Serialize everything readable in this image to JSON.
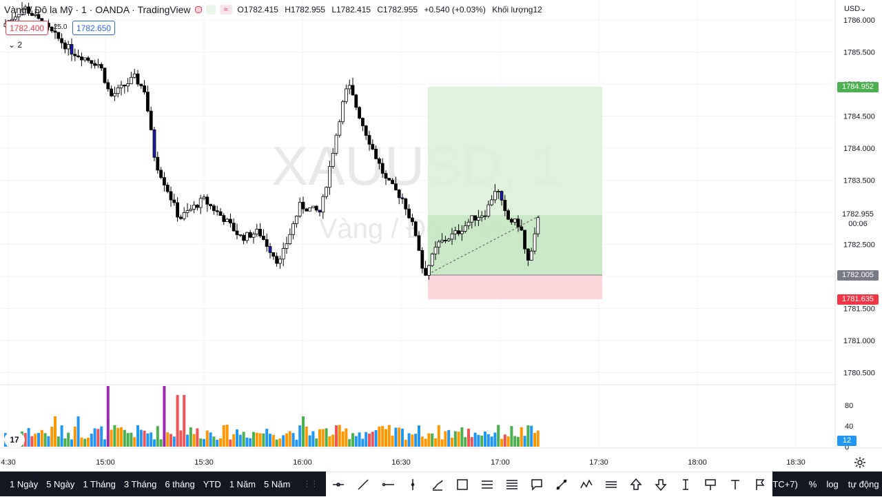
{
  "chart": {
    "title": "Vàng / Đô la Mỹ · 1 · OANDA · TradingView",
    "ohlc": {
      "open": "O1782.415",
      "high": "H1782.955",
      "low": "L1782.415",
      "close": "C1782.955",
      "change": "+0.540 (+0.03%)",
      "volume": "Khối lượng12"
    },
    "sell_price": "1782.400",
    "buy_price": "1782.650",
    "spread": "25.0",
    "collapse_count": "2",
    "watermark_symbol": "XAUUSD, 1",
    "watermark_name": "Vàng / Đô la Mỹ",
    "currency": "USD"
  },
  "price_axis": {
    "ticks": [
      "1786.000",
      "1785.500",
      "1785.000",
      "1784.500",
      "1784.000",
      "1783.500",
      "1783.000",
      "1782.500",
      "1782.000",
      "1781.500",
      "1781.000",
      "1780.500"
    ],
    "labels": {
      "target": "1784.952",
      "last": "1782.955",
      "countdown": "00:06",
      "entry": "1782.005",
      "stop": "1781.635"
    }
  },
  "volume_axis": {
    "ticks": [
      "80",
      "40",
      "0"
    ],
    "current": "12"
  },
  "time_axis": {
    "ticks": [
      "4:30",
      "15:00",
      "15:30",
      "16:00",
      "16:30",
      "17:00",
      "17:30",
      "18:00",
      "18:30"
    ]
  },
  "bottom_bar": {
    "timeframes": [
      "1 Ngày",
      "5 Ngày",
      "1 Tháng",
      "3 Tháng",
      "6 tháng",
      "YTD",
      "1 Năm",
      "5 Năm"
    ],
    "timezone": "TC+7)",
    "percent": "%",
    "log": "log",
    "auto": "tự động"
  },
  "colors": {
    "up": "#ffffff",
    "down": "#000000",
    "highlight": "#1a1aa6",
    "vol_green": "#4caf50",
    "vol_blue": "#2196f3",
    "vol_orange": "#ff9800",
    "vol_red": "#f15454",
    "vol_purple": "#9c27b0",
    "target_zone": "#d9f0d6",
    "stop_zone": "#fbd5da",
    "label_green": "#4caf50",
    "label_red": "#f23645",
    "label_gray": "#787b86"
  },
  "chart_data": {
    "type": "candlestick",
    "instrument": "XAUUSD",
    "interval": "1 minute",
    "ylim": [
      1780.3,
      1786.1
    ],
    "x_ticks": [
      "15:00",
      "15:30",
      "16:00",
      "16:30",
      "17:00",
      "17:30",
      "18:00",
      "18:30"
    ],
    "position": {
      "type": "long",
      "entry": 1782.005,
      "target": 1784.952,
      "stop": 1781.635,
      "current": 1782.955
    },
    "last_candle": {
      "open": 1782.415,
      "high": 1782.955,
      "low": 1782.415,
      "close": 1782.955,
      "volume": 12
    }
  }
}
